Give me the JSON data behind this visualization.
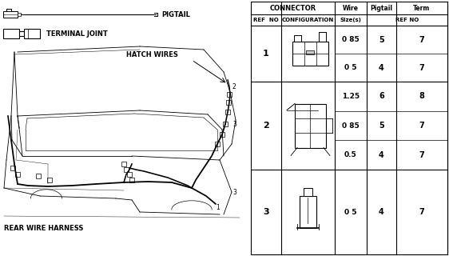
{
  "bg_color": "#ffffff",
  "pigtail_label": "PIGTAIL",
  "terminal_label": "TERMINAL JOINT",
  "hatch_wires_label": "HATCH WIRES",
  "rear_harness_label": "REAR WIRE HARNESS",
  "table": {
    "rows": [
      {
        "ref": "1",
        "wire_sizes": [
          "0 85",
          "0 5"
        ],
        "pigtail": [
          "5",
          "4"
        ],
        "term": [
          "7",
          "7"
        ]
      },
      {
        "ref": "2",
        "wire_sizes": [
          "1.25",
          "0 85",
          "0.5"
        ],
        "pigtail": [
          "6",
          "5",
          "4"
        ],
        "term": [
          "8",
          "7",
          "7"
        ]
      },
      {
        "ref": "3",
        "wire_sizes": [
          "0 5"
        ],
        "pigtail": [
          "4"
        ],
        "term": [
          "7"
        ]
      }
    ],
    "header1": [
      "CONNECTOR",
      "Wire",
      "Pigtail",
      "Term"
    ],
    "header2": [
      "REF  NO",
      "CONFIGURATION",
      "Size(s)",
      "REF NO"
    ]
  },
  "line_color": "#000000",
  "text_color": "#000000"
}
